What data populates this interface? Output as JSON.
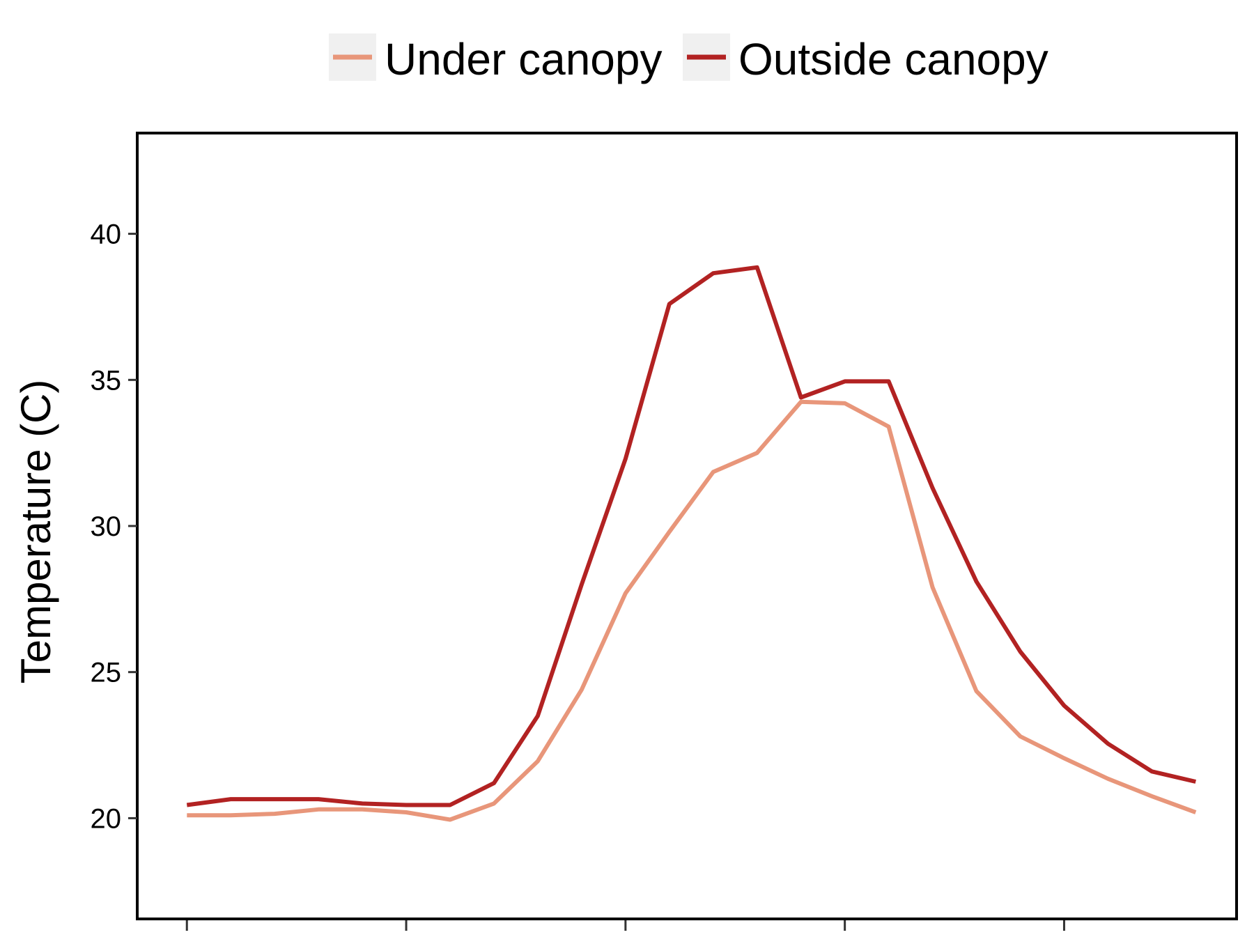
{
  "legend": {
    "items": [
      {
        "label": "Under canopy",
        "color": "#E8967A"
      },
      {
        "label": "Outside canopy",
        "color": "#B22222"
      }
    ],
    "key_background": "#F0F0F0"
  },
  "chart_data": {
    "type": "line",
    "title": "",
    "xlabel": "",
    "ylabel": "Temperature (C)",
    "ylim": [
      16.6,
      43.4
    ],
    "xlim": [
      -1.1,
      23.9
    ],
    "yticks": [
      20,
      25,
      30,
      35,
      40
    ],
    "ytick_labels": [
      "20",
      "25",
      "30",
      "35",
      "40"
    ],
    "xticks": [
      0,
      5,
      10,
      15,
      20
    ],
    "xtick_labels": [
      "",
      "",
      "",
      "",
      ""
    ],
    "grid": false,
    "legend_position": "top",
    "x": [
      0,
      1,
      2,
      3,
      4,
      5,
      6,
      7,
      8,
      9,
      10,
      11,
      12,
      13,
      14,
      15,
      16,
      17,
      18,
      19,
      20,
      21,
      22,
      23
    ],
    "series": [
      {
        "name": "Under canopy",
        "color": "#E8967A",
        "values": [
          20.1,
          20.1,
          20.15,
          20.3,
          20.3,
          20.2,
          19.95,
          20.5,
          21.95,
          24.4,
          27.7,
          29.8,
          31.85,
          32.5,
          34.25,
          34.2,
          33.4,
          27.9,
          24.35,
          22.8,
          22.05,
          21.35,
          20.75,
          20.2
        ]
      },
      {
        "name": "Outside canopy",
        "color": "#B22222",
        "values": [
          20.45,
          20.65,
          20.65,
          20.65,
          20.5,
          20.45,
          20.45,
          21.2,
          23.5,
          28.0,
          32.3,
          37.6,
          38.65,
          38.85,
          34.4,
          34.95,
          34.95,
          31.3,
          28.1,
          25.7,
          23.85,
          22.55,
          21.6,
          21.25
        ]
      }
    ]
  }
}
